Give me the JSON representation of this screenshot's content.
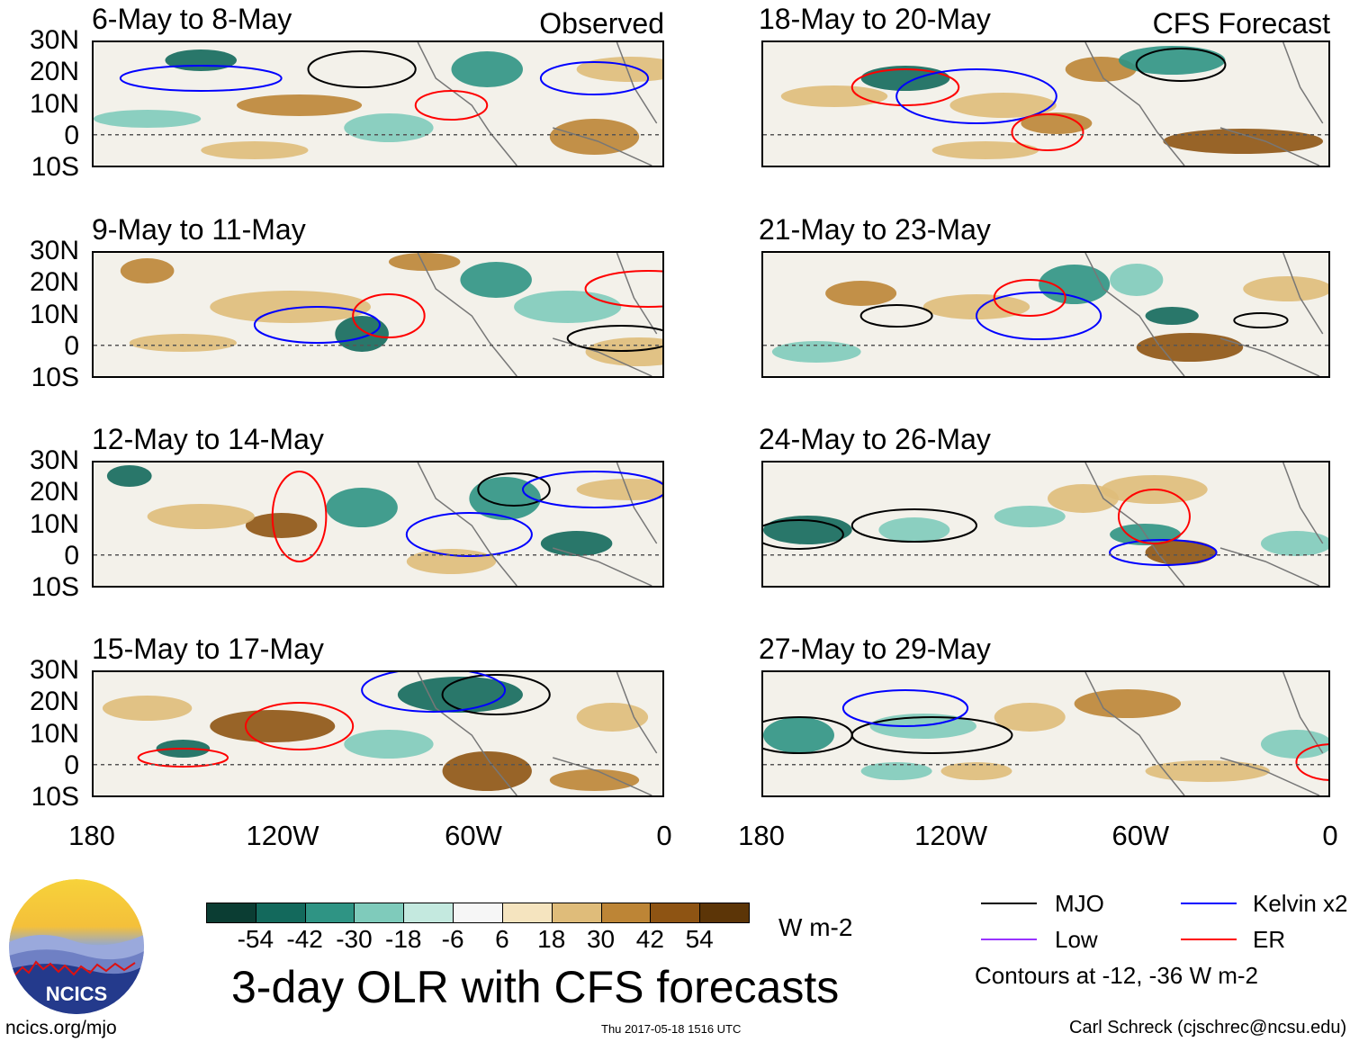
{
  "header": {
    "observed_label": "Observed",
    "forecast_label": "CFS Forecast"
  },
  "panels": [
    {
      "title": "6-May to 8-May",
      "section": "observed"
    },
    {
      "title": "9-May to 11-May",
      "section": "observed"
    },
    {
      "title": "12-May to 14-May",
      "section": "observed"
    },
    {
      "title": "15-May to 17-May",
      "section": "observed"
    },
    {
      "title": "18-May to 20-May",
      "section": "forecast"
    },
    {
      "title": "21-May to 23-May",
      "section": "forecast"
    },
    {
      "title": "24-May to 26-May",
      "section": "forecast"
    },
    {
      "title": "27-May to 29-May",
      "section": "forecast"
    }
  ],
  "lat_labels": [
    "30N",
    "20N",
    "10N",
    "0",
    "10S"
  ],
  "lon_labels": [
    "180",
    "120W",
    "60W",
    "0"
  ],
  "colorbar": {
    "colors": [
      "#0b3d33",
      "#13695c",
      "#2f9484",
      "#7fcbbb",
      "#c4e9df",
      "#f6f6f6",
      "#f5e4bf",
      "#dfbc7a",
      "#bd8536",
      "#8e5413",
      "#5c3507"
    ],
    "tick_labels": [
      "-54",
      "-42",
      "-30",
      "-18",
      "-6",
      "6",
      "18",
      "30",
      "42",
      "54"
    ],
    "units": "W m-2"
  },
  "title": "3-day OLR with CFS forecasts",
  "legend": {
    "items": [
      {
        "label": "MJO",
        "color": "#000000"
      },
      {
        "label": "Kelvin x2",
        "color": "#0000ff"
      },
      {
        "label": "Low",
        "color": "#9933ff"
      },
      {
        "label": "ER",
        "color": "#ff0000"
      }
    ],
    "note": "Contours at -12, -36 W m-2"
  },
  "logo": {
    "text": "NCICS"
  },
  "footer": {
    "url": "ncics.org/mjo",
    "timestamp": "Thu 2017-05-18 1516 UTC",
    "author": "Carl Schreck (cjschrec@ncsu.edu)"
  }
}
